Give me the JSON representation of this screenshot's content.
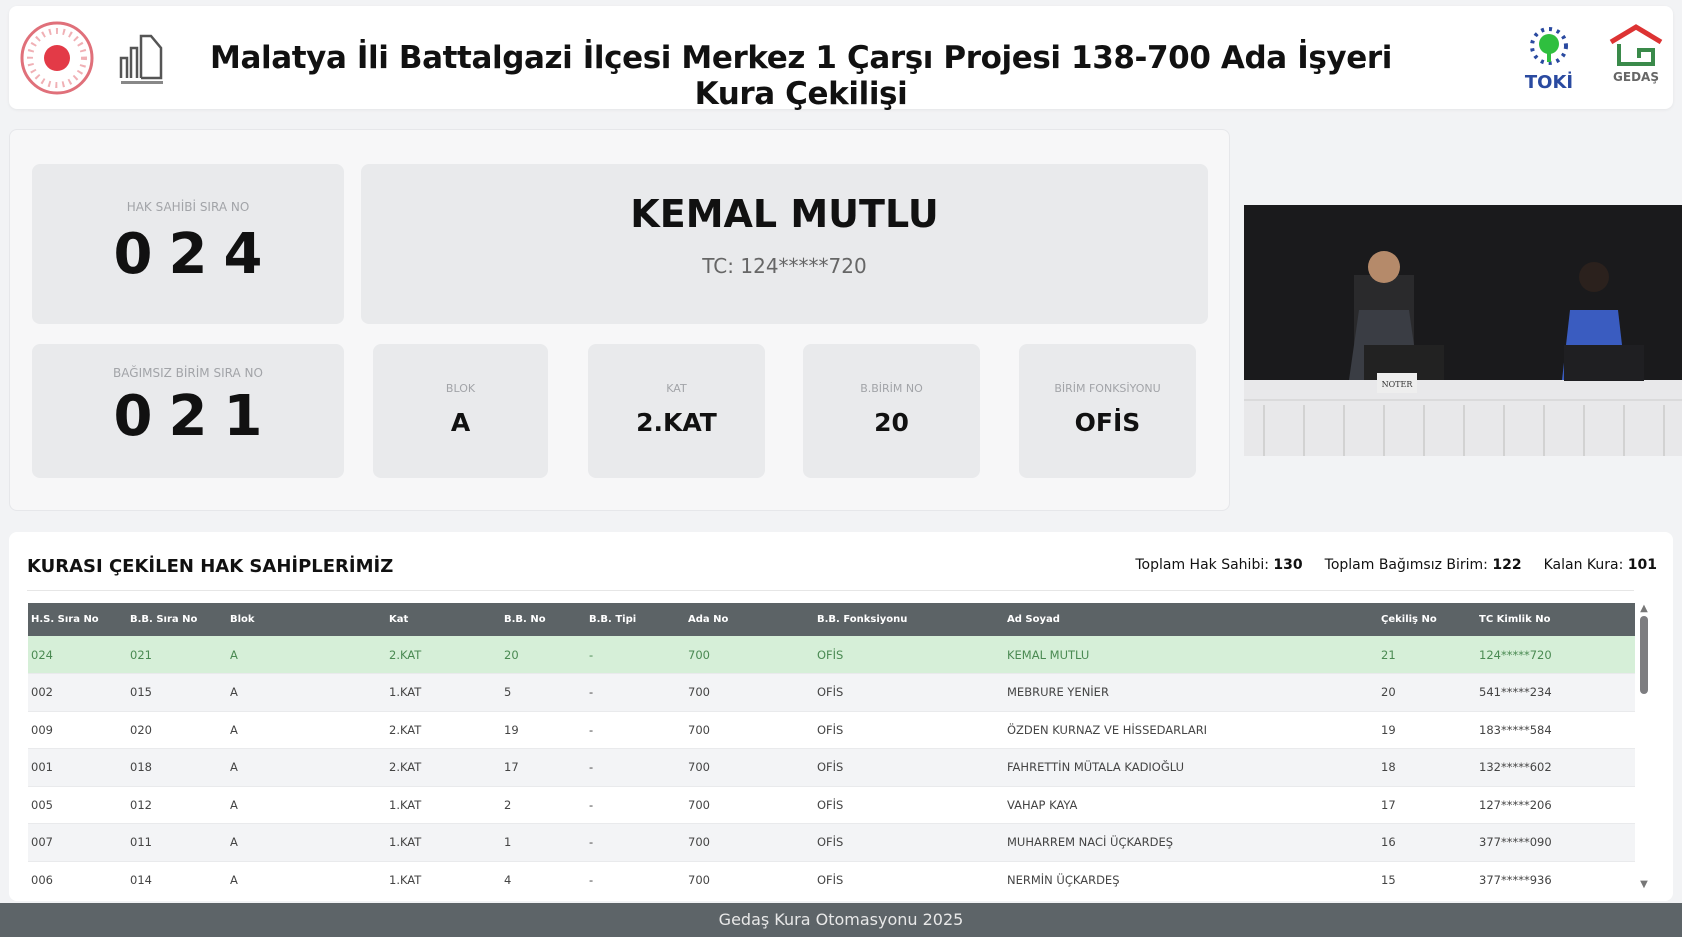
{
  "header": {
    "title": "Malatya İli Battalgazi İlçesi Merkez 1 Çarşı Projesi 138-700 Ada İşyeri Kura Çekilişi",
    "logos": [
      "TOKİ",
      "GEDAŞ"
    ]
  },
  "current": {
    "hs_label": "HAK SAHİBİ SIRA NO",
    "hs_value": "024",
    "name": "KEMAL MUTLU",
    "tc": "TC: 124*****720",
    "bb_label": "BAĞIMSIZ BİRİM SIRA NO",
    "bb_value": "021",
    "fields": [
      {
        "label": "BLOK",
        "value": "A"
      },
      {
        "label": "KAT",
        "value": "2.KAT"
      },
      {
        "label": "B.BİRİM NO",
        "value": "20"
      },
      {
        "label": "BİRİM FONKSİYONU",
        "value": "OFİS"
      }
    ]
  },
  "video": {
    "sign": "NOTER"
  },
  "list": {
    "title": "KURASI ÇEKİLEN HAK SAHİPLERİMİZ",
    "stats": [
      {
        "label": "Toplam Hak Sahibi:",
        "value": "130"
      },
      {
        "label": "Toplam Bağımsız Birim:",
        "value": "122"
      },
      {
        "label": "Kalan Kura:",
        "value": "101"
      }
    ],
    "columns": [
      "H.S. Sıra No",
      "B.B. Sıra No",
      "Blok",
      "Kat",
      "B.B. No",
      "B.B. Tipi",
      "Ada No",
      "B.B. Fonksiyonu",
      "Ad Soyad",
      "Çekiliş No",
      "TC Kimlik No"
    ],
    "rows": [
      [
        "024",
        "021",
        "A",
        "2.KAT",
        "20",
        "-",
        "700",
        "OFİS",
        "KEMAL MUTLU",
        "21",
        "124*****720"
      ],
      [
        "002",
        "015",
        "A",
        "1.KAT",
        "5",
        "-",
        "700",
        "OFİS",
        "MEBRURE YENİER",
        "20",
        "541*****234"
      ],
      [
        "009",
        "020",
        "A",
        "2.KAT",
        "19",
        "-",
        "700",
        "OFİS",
        "ÖZDEN KURNAZ VE HİSSEDARLARI",
        "19",
        "183*****584"
      ],
      [
        "001",
        "018",
        "A",
        "2.KAT",
        "17",
        "-",
        "700",
        "OFİS",
        "FAHRETTİN MÜTALA KADIOĞLU",
        "18",
        "132*****602"
      ],
      [
        "005",
        "012",
        "A",
        "1.KAT",
        "2",
        "-",
        "700",
        "OFİS",
        "VAHAP KAYA",
        "17",
        "127*****206"
      ],
      [
        "007",
        "011",
        "A",
        "1.KAT",
        "1",
        "-",
        "700",
        "OFİS",
        "MUHARREM NACİ ÜÇKARDEŞ",
        "16",
        "377*****090"
      ],
      [
        "006",
        "014",
        "A",
        "1.KAT",
        "4",
        "-",
        "700",
        "OFİS",
        "NERMİN ÜÇKARDEŞ",
        "15",
        "377*****936"
      ]
    ],
    "highlight_color": "#d6efd8"
  },
  "footer": {
    "text": "Gedaş Kura Otomasyonu 2025"
  }
}
